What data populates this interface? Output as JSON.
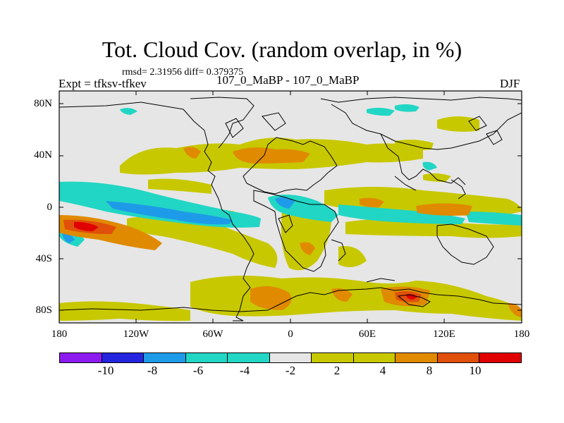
{
  "title": "Tot. Cloud Cov. (random overlap, in %)",
  "stats": "rmsd= 2.31956 diff= 0.379375",
  "experiment": "Expt = tfksv-tfkev",
  "case_label": "107_0_MaBP - 107_0_MaBP",
  "season": "DJF",
  "lat_ticks": [
    "80N",
    "40N",
    "0",
    "40S",
    "80S"
  ],
  "lon_ticks": [
    "180",
    "120W",
    "60W",
    "0",
    "60E",
    "120E",
    "180"
  ],
  "colorbar": {
    "labels": [
      "-10",
      "-8",
      "-6",
      "-4",
      "-2",
      "2",
      "4",
      "8",
      "10"
    ],
    "colors": [
      "#8c1bf0",
      "#2525e0",
      "#1e9be8",
      "#21d6c4",
      "#f0f0f0",
      "#c8c800",
      "#e08a00",
      "#e0500a",
      "#e00000"
    ],
    "colors_all": [
      "#8c1bf0",
      "#2525e0",
      "#1e9be8",
      "#21d6c4",
      "#21d6c4",
      "#e6e6e6",
      "#c8c800",
      "#c8c800",
      "#e08a00",
      "#e0500a",
      "#e00000"
    ]
  },
  "colors": {
    "background": "#e6e6e6",
    "cyan": "#21d6c4",
    "blue": "#1e9be8",
    "olive": "#c8c800",
    "orange": "#e08a00",
    "red_orange": "#e0500a",
    "red": "#e00000"
  }
}
